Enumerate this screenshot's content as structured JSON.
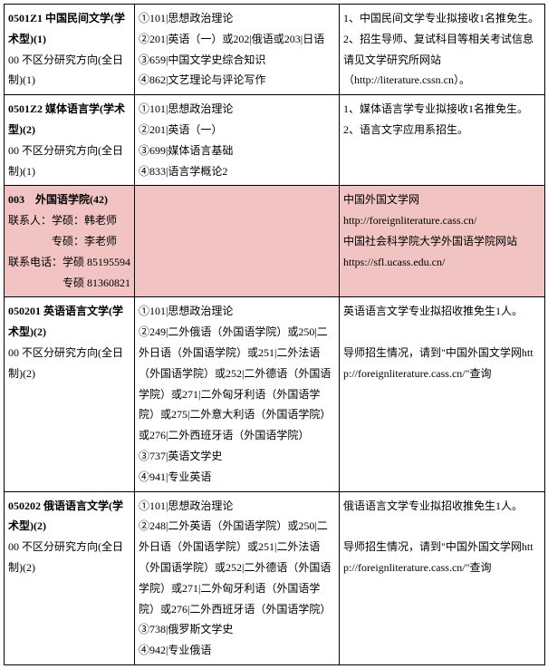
{
  "rows": [
    {
      "col1": [
        {
          "t": "0501Z1 中国民间文学(学术型)(1)",
          "b": true
        },
        {
          "t": "00 不区分研究方向(全日制)(1)"
        }
      ],
      "col2": [
        {
          "t": "①101|思想政治理论"
        },
        {
          "t": "②201|英语（一）或202|俄语或203|日语"
        },
        {
          "t": "③659|中国文学史综合知识"
        },
        {
          "t": "④862|文艺理论与评论写作"
        }
      ],
      "col3": [
        {
          "t": "1、中国民间文学专业拟接收1名推免生。"
        },
        {
          "t": "2、招生导师、复试科目等相关考试信息请见文学研究所网站"
        },
        {
          "t": "（http://literature.cssn.cn）。"
        }
      ]
    },
    {
      "col1": [
        {
          "t": "0501Z2 媒体语言学(学术型)(2)",
          "b": true
        },
        {
          "t": "00 不区分研究方向(全日制)(1)"
        }
      ],
      "col2": [
        {
          "t": "①101|思想政治理论"
        },
        {
          "t": "②201|英语（一）"
        },
        {
          "t": "③699|媒体语言基础"
        },
        {
          "t": "④833|语言学概论2"
        }
      ],
      "col3": [
        {
          "t": "1、媒体语言学专业拟接收1名推免生。"
        },
        {
          "t": "2、语言文字应用系招生。"
        }
      ]
    },
    {
      "pink": true,
      "col1": [
        {
          "t": "003　外国语学院(42)",
          "b": true
        },
        {
          "t": "联系人：学硕：韩老师"
        },
        {
          "t": "　　　　专硕：李老师"
        },
        {
          "t": "联系电话：学硕 85195594"
        },
        {
          "t": "　　　　　专硕 81360821"
        }
      ],
      "col2": [],
      "col3": [
        {
          "t": "中国外国文学网"
        },
        {
          "t": "http://foreignliterature.cass.cn/"
        },
        {
          "t": "中国社会科学院大学外国语学院网站"
        },
        {
          "t": "https://sfl.ucass.edu.cn/"
        }
      ]
    },
    {
      "col1": [
        {
          "t": "050201 英语语言文学(学术型)(2)",
          "b": true
        },
        {
          "t": "00 不区分研究方向(全日制)(2)"
        }
      ],
      "col2": [
        {
          "t": "①101|思想政治理论"
        },
        {
          "t": "②249|二外俄语（外国语学院）或250|二外日语（外国语学院）或251|二外法语（外国语学院）或252|二外德语（外国语学院）或271|二外匈牙利语（外国语学院）或275|二外意大利语（外国语学院）或276|二外西班牙语（外国语学院）"
        },
        {
          "t": "③737|英语文学史"
        },
        {
          "t": "④941|专业英语"
        }
      ],
      "col3": [
        {
          "t": "英语语言文学专业拟招收推免生1人。"
        },
        {
          "t": ""
        },
        {
          "t": "导师招生情况，请到\"中国外国文学网http://foreignliterature.cass.cn/\"查询"
        }
      ]
    },
    {
      "col1": [
        {
          "t": "050202 俄语语言文学(学术型)(2)",
          "b": true
        },
        {
          "t": "00 不区分研究方向(全日制)(2)"
        }
      ],
      "col2": [
        {
          "t": "①101|思想政治理论"
        },
        {
          "t": "②248|二外英语（外国语学院）或250|二外日语（外国语学院）或251|二外法语（外国语学院）或252|二外德语（外国语学院）或271|二外匈牙利语（外国语学院）或276|二外西班牙语（外国语学院）"
        },
        {
          "t": "③738|俄罗斯文学史"
        },
        {
          "t": "④942|专业俄语"
        }
      ],
      "col3": [
        {
          "t": "俄语语言文学专业拟招收推免生1人。"
        },
        {
          "t": ""
        },
        {
          "t": "导师招生情况，请到\"中国外国文学网http://foreignliterature.cass.cn/\"查询"
        }
      ]
    }
  ]
}
